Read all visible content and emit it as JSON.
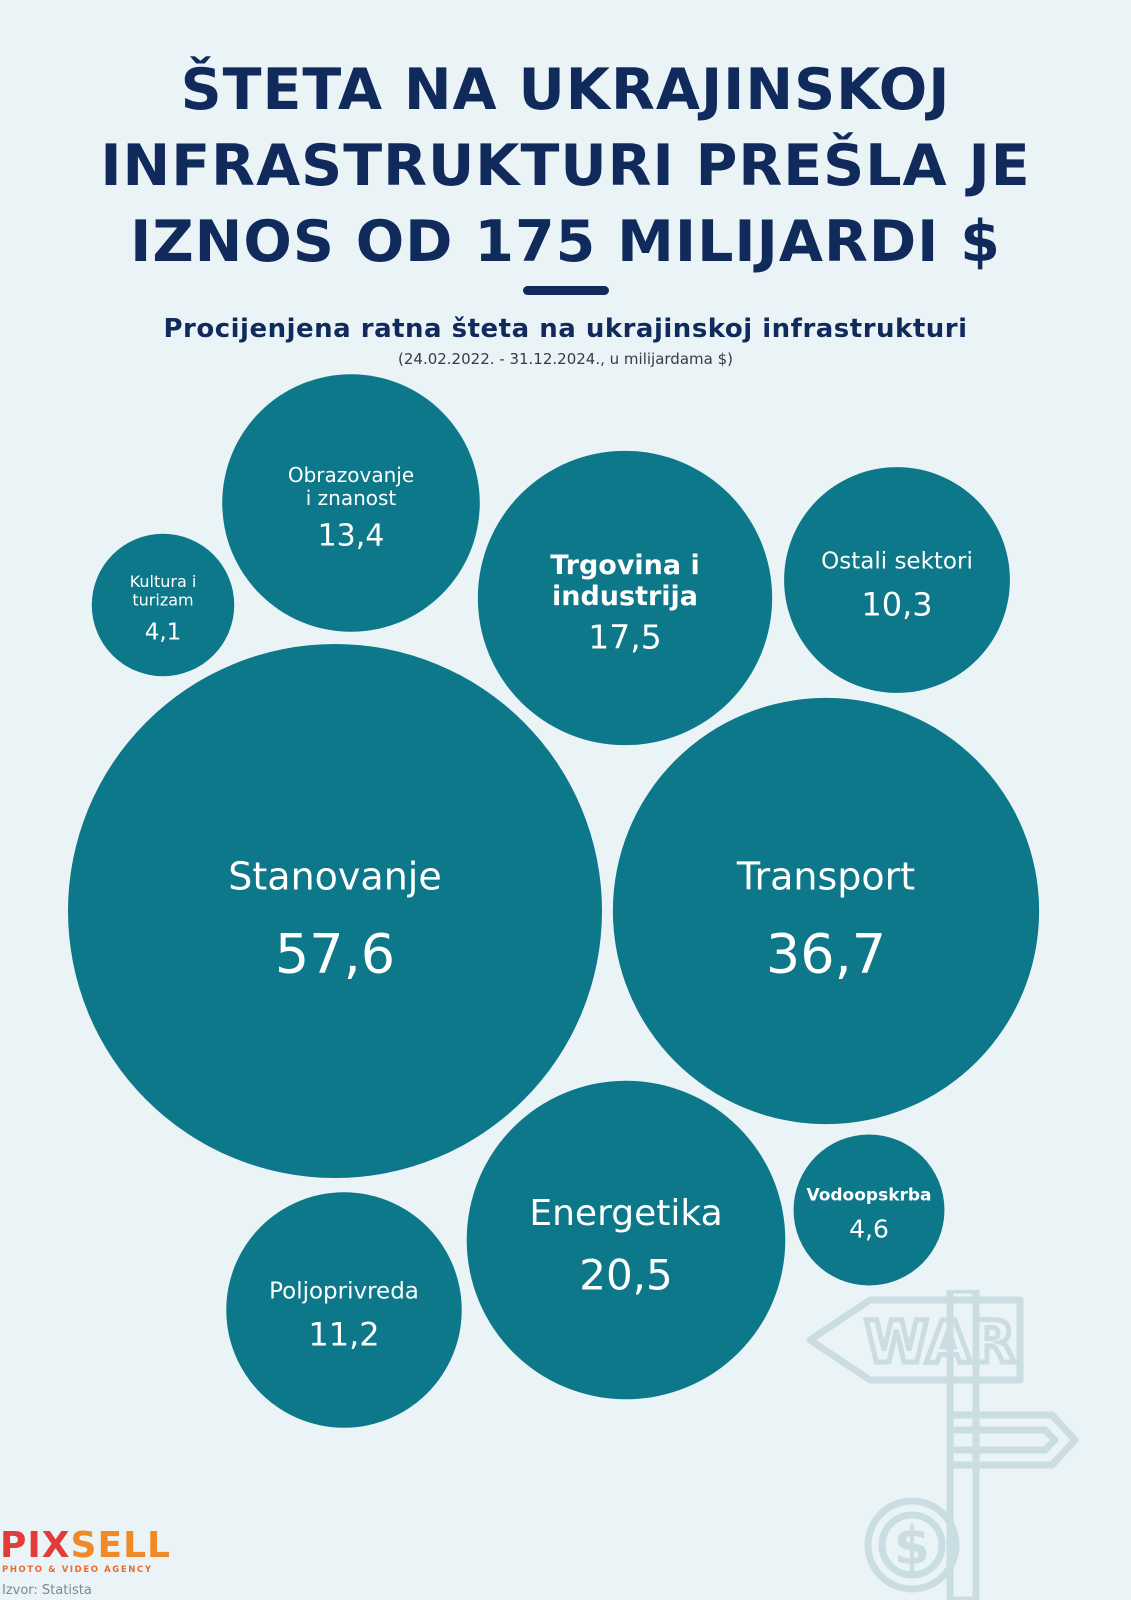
{
  "title_lines": [
    "ŠTETA NA UKRAJINSKOJ",
    "INFRASTRUKTURI PREŠLA JE",
    "IZNOS OD 175 MILIJARDI $"
  ],
  "subtitle": "Procijenjena ratna šteta na ukrajinskoj infrastrukturi",
  "subnote": "(24.02.2022. - 31.12.2024., u milijardama $)",
  "colors": {
    "background": "#eaf4f7",
    "bubble": "#0c7889",
    "title": "#102a5c"
  },
  "chart_data": {
    "type": "bubble",
    "title": "Procijenjena ratna šteta na ukrajinskoj infrastrukturi",
    "unit": "u milijardama $",
    "categories": [
      "Stanovanje",
      "Transport",
      "Energetika",
      "Trgovina i industrija",
      "Obrazovanje i znanost",
      "Poljoprivreda",
      "Ostali sektori",
      "Vodoopskrba",
      "Kultura i turizam"
    ],
    "values": [
      57.6,
      36.7,
      20.5,
      17.5,
      13.4,
      11.2,
      10.3,
      4.6,
      4.1
    ],
    "value_labels": [
      "57,6",
      "36,7",
      "20,5",
      "17,5",
      "13,4",
      "11,2",
      "10,3",
      "4,6",
      "4,1"
    ]
  },
  "decoration": {
    "sign_text": "WAR",
    "coin_symbol": "$"
  },
  "logo": {
    "part1": "PIX",
    "part2": "SELL",
    "tagline": "PHOTO & VIDEO AGENCY"
  },
  "source": "Izvor: Statista"
}
